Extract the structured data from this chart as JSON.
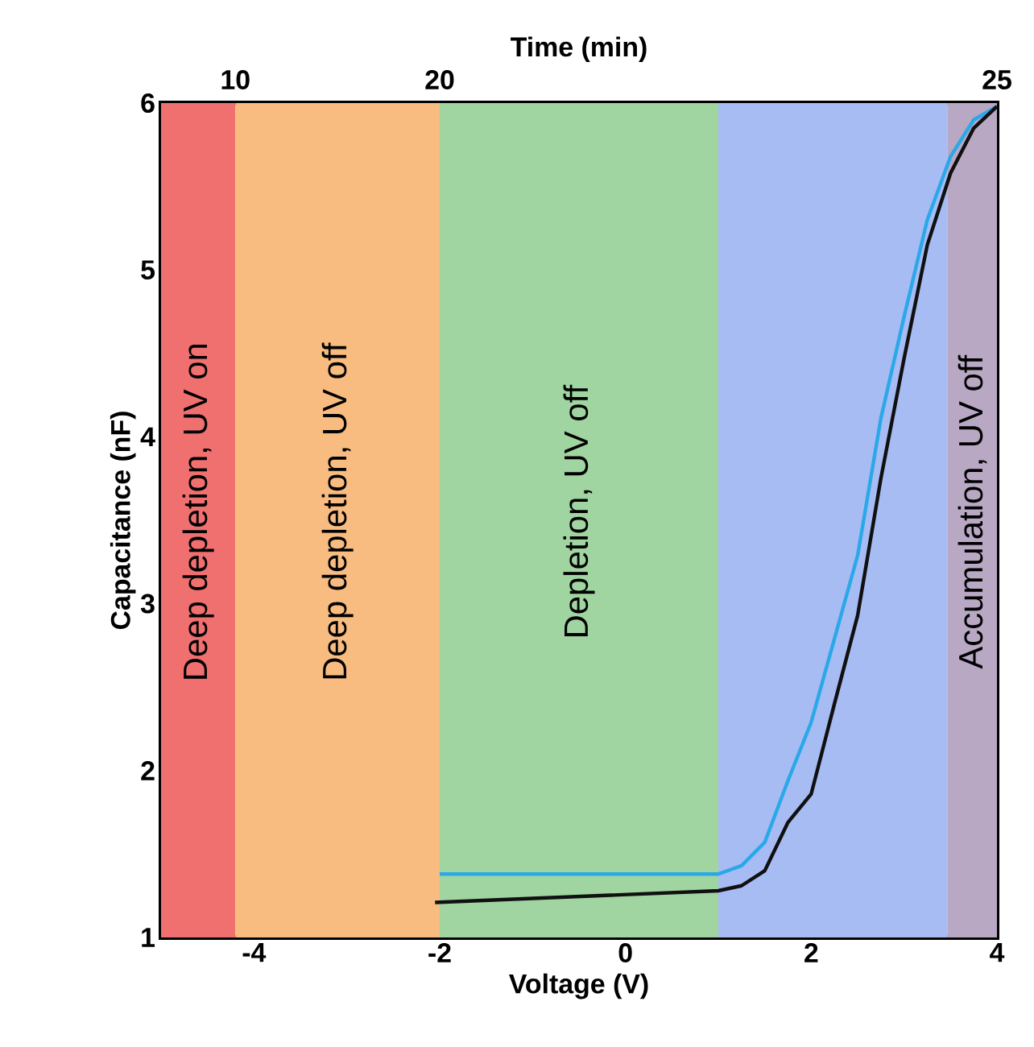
{
  "chart_data": {
    "type": "line",
    "xlabel": "Voltage (V)",
    "ylabel": "Capacitance (nF)",
    "xlim": [
      -5,
      4
    ],
    "ylim": [
      1,
      6
    ],
    "xticks": [
      -4,
      -2,
      0,
      2,
      4
    ],
    "yticks": [
      1,
      2,
      3,
      4,
      5,
      6
    ],
    "series": [
      {
        "color": "#2aa8e8",
        "x": [
          -2,
          1,
          1.25,
          1.5,
          1.75,
          2,
          2.25,
          2.5,
          2.75,
          3,
          3.25,
          3.5,
          3.75,
          4
        ],
        "values": [
          1.38,
          1.38,
          1.43,
          1.57,
          1.94,
          2.29,
          2.79,
          3.29,
          4.11,
          4.72,
          5.3,
          5.68,
          5.9,
          5.98
        ]
      },
      {
        "color": "#101010",
        "x": [
          -2.05,
          1,
          1.25,
          1.5,
          1.75,
          2,
          2.25,
          2.5,
          2.75,
          3,
          3.25,
          3.5,
          3.75,
          4
        ],
        "values": [
          1.21,
          1.28,
          1.31,
          1.4,
          1.69,
          1.86,
          2.4,
          2.93,
          3.75,
          4.47,
          5.15,
          5.58,
          5.85,
          5.98
        ]
      }
    ],
    "bands": [
      {
        "axis": "x",
        "from": -5,
        "to": -4.2,
        "label": "Deep depletion, UV on",
        "color": "#f07070"
      },
      {
        "axis": "x",
        "from": -4.2,
        "to": -2,
        "label": "Deep depletion, UV off",
        "color": "#f8bc80"
      },
      {
        "axis": "x",
        "from": -2,
        "to": 1,
        "label": "Depletion, UV off",
        "color": "#a0d4a0"
      },
      {
        "axis": "x",
        "from": 1,
        "to": 3.47,
        "color": "#a8bcf4"
      },
      {
        "axis": "x",
        "from": 3.47,
        "to": 4,
        "label": "Accumulation, UV off",
        "color": "#b8a8c4"
      }
    ],
    "annotations": [
      "Time (min)",
      {
        "text": "10",
        "x": -4.2,
        "y": 6
      },
      {
        "text": "20",
        "x": -2,
        "y": 6
      },
      {
        "text": "25",
        "x": 4,
        "y": 6
      }
    ],
    "grid": false,
    "marker": "none",
    "line_style": "solid"
  }
}
